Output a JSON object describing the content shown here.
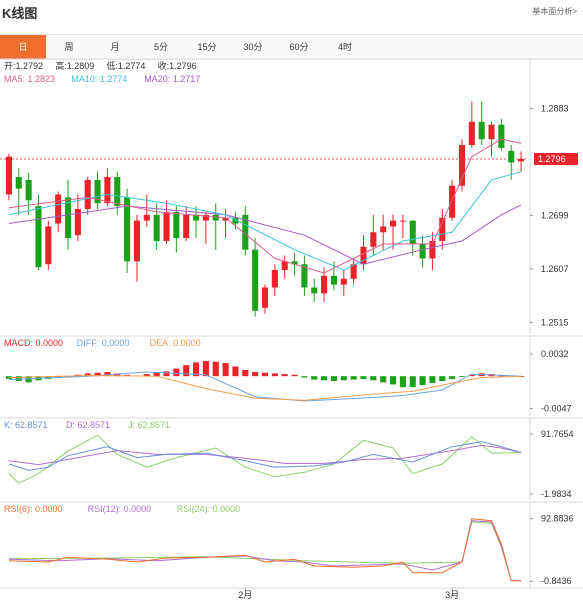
{
  "header": {
    "title": "K线图",
    "analysis_link": "基本面分析>"
  },
  "tabs": [
    {
      "label": "日",
      "active": true
    },
    {
      "label": "周"
    },
    {
      "label": "月"
    },
    {
      "label": "5分"
    },
    {
      "label": "15分"
    },
    {
      "label": "30分"
    },
    {
      "label": "60分"
    },
    {
      "label": "4时"
    }
  ],
  "colors": {
    "up": "#e8242a",
    "down": "#1aa31a",
    "ma5": "#e05e8c",
    "ma10": "#38c5da",
    "ma20": "#a05cc8",
    "accent": "#f06f30",
    "macd_diff": "#6fa3de",
    "macd_dea": "#f29d4b",
    "kdj_k": "#6f8fdd",
    "kdj_d": "#b06fd0",
    "kdj_j": "#8fcf6a",
    "rsi6": "#f06f30",
    "rsi12": "#b06fd0",
    "rsi24": "#8fcf6a"
  },
  "chart_data": {
    "type": "candlestick",
    "x_tick_labels": [
      {
        "label": "2月",
        "index": 24
      },
      {
        "label": "3月",
        "index": 45
      }
    ],
    "main": {
      "legend_ohlc": [
        {
          "key": "open",
          "label": "开:",
          "value": "1.2792"
        },
        {
          "key": "high",
          "label": "高:",
          "value": "1.2809"
        },
        {
          "key": "low",
          "label": "低:",
          "value": "1.2774"
        },
        {
          "key": "close",
          "label": "收:",
          "value": "1.2796"
        }
      ],
      "legend_ma": [
        {
          "key": "ma5",
          "label": "MA5: ",
          "value": "1.2823"
        },
        {
          "key": "ma10",
          "label": "MA10: ",
          "value": "1.2774"
        },
        {
          "key": "ma20",
          "label": "MA20: ",
          "value": "1.2717"
        }
      ],
      "y_ticks": [
        "1.2883",
        "1.2699",
        "1.2607",
        "1.2515"
      ],
      "y_min": 1.2495,
      "y_max": 1.2925,
      "last_price": "1.2796",
      "candles": [
        [
          1.2735,
          1.2805,
          1.2725,
          1.28
        ],
        [
          1.2765,
          1.278,
          1.27,
          1.2745
        ],
        [
          1.276,
          1.2772,
          1.27,
          1.2725
        ],
        [
          1.2715,
          1.2735,
          1.2605,
          1.261
        ],
        [
          1.2615,
          1.269,
          1.2605,
          1.268
        ],
        [
          1.2685,
          1.274,
          1.267,
          1.2735
        ],
        [
          1.273,
          1.276,
          1.264,
          1.266
        ],
        [
          1.2665,
          1.2735,
          1.2655,
          1.271
        ],
        [
          1.271,
          1.2765,
          1.27,
          1.276
        ],
        [
          1.276,
          1.2775,
          1.271,
          1.272
        ],
        [
          1.272,
          1.278,
          1.2715,
          1.2765
        ],
        [
          1.2765,
          1.2775,
          1.27,
          1.2715
        ],
        [
          1.273,
          1.2745,
          1.26,
          1.262
        ],
        [
          1.262,
          1.27,
          1.2585,
          1.269
        ],
        [
          1.269,
          1.2735,
          1.268,
          1.27
        ],
        [
          1.27,
          1.272,
          1.264,
          1.2655
        ],
        [
          1.2655,
          1.2725,
          1.265,
          1.2705
        ],
        [
          1.2705,
          1.2715,
          1.2635,
          1.266
        ],
        [
          1.266,
          1.2715,
          1.2655,
          1.27
        ],
        [
          1.27,
          1.2715,
          1.266,
          1.269
        ],
        [
          1.269,
          1.2705,
          1.265,
          1.27
        ],
        [
          1.27,
          1.272,
          1.264,
          1.269
        ],
        [
          1.269,
          1.271,
          1.266,
          1.2695
        ],
        [
          1.2695,
          1.2705,
          1.2675,
          1.2685
        ],
        [
          1.27,
          1.2715,
          1.263,
          1.264
        ],
        [
          1.264,
          1.266,
          1.2525,
          1.2535
        ],
        [
          1.254,
          1.258,
          1.253,
          1.2575
        ],
        [
          1.2575,
          1.2615,
          1.256,
          1.2605
        ],
        [
          1.2605,
          1.263,
          1.259,
          1.262
        ],
        [
          1.262,
          1.2635,
          1.2595,
          1.2615
        ],
        [
          1.2615,
          1.263,
          1.256,
          1.2575
        ],
        [
          1.2575,
          1.259,
          1.255,
          1.2565
        ],
        [
          1.2565,
          1.261,
          1.255,
          1.2595
        ],
        [
          1.2595,
          1.262,
          1.257,
          1.258
        ],
        [
          1.258,
          1.2605,
          1.256,
          1.259
        ],
        [
          1.259,
          1.2625,
          1.258,
          1.2615
        ],
        [
          1.2615,
          1.2665,
          1.2605,
          1.2645
        ],
        [
          1.2645,
          1.27,
          1.263,
          1.267
        ],
        [
          1.267,
          1.27,
          1.264,
          1.268
        ],
        [
          1.268,
          1.27,
          1.264,
          1.269
        ],
        [
          1.269,
          1.27,
          1.266,
          1.269
        ],
        [
          1.269,
          1.269,
          1.263,
          1.265
        ],
        [
          1.265,
          1.2665,
          1.261,
          1.2625
        ],
        [
          1.2625,
          1.267,
          1.2605,
          1.2655
        ],
        [
          1.2655,
          1.271,
          1.264,
          1.2695
        ],
        [
          1.2695,
          1.276,
          1.269,
          1.275
        ],
        [
          1.275,
          1.283,
          1.274,
          1.282
        ],
        [
          1.282,
          1.2895,
          1.2815,
          1.286
        ],
        [
          1.286,
          1.2895,
          1.282,
          1.283
        ],
        [
          1.283,
          1.286,
          1.28,
          1.2855
        ],
        [
          1.2855,
          1.2865,
          1.281,
          1.2815
        ],
        [
          1.281,
          1.282,
          1.276,
          1.279
        ],
        [
          1.2792,
          1.2809,
          1.2774,
          1.2796
        ]
      ],
      "ma5": [
        [
          0,
          1.2712
        ],
        [
          8,
          1.273
        ],
        [
          15,
          1.2705
        ],
        [
          22,
          1.2695
        ],
        [
          27,
          1.2625
        ],
        [
          32,
          1.26
        ],
        [
          38,
          1.265
        ],
        [
          43,
          1.265
        ],
        [
          47,
          1.28
        ],
        [
          50,
          1.283
        ],
        [
          52,
          1.2823
        ]
      ],
      "ma10": [
        [
          0,
          1.27
        ],
        [
          10,
          1.2735
        ],
        [
          16,
          1.272
        ],
        [
          22,
          1.27
        ],
        [
          29,
          1.264
        ],
        [
          34,
          1.2605
        ],
        [
          40,
          1.2655
        ],
        [
          45,
          1.267
        ],
        [
          49,
          1.276
        ],
        [
          52,
          1.2774
        ]
      ],
      "ma20": [
        [
          0,
          1.2685
        ],
        [
          12,
          1.2715
        ],
        [
          22,
          1.27
        ],
        [
          30,
          1.2665
        ],
        [
          36,
          1.2615
        ],
        [
          42,
          1.264
        ],
        [
          46,
          1.2655
        ],
        [
          50,
          1.27
        ],
        [
          52,
          1.2717
        ]
      ]
    },
    "macd": {
      "legend": [
        {
          "key": "macd",
          "label": "MACD: ",
          "value": "0.0000"
        },
        {
          "key": "diff",
          "label": "DIFF: ",
          "value": "0.0000"
        },
        {
          "key": "dea",
          "label": "DEA: ",
          "value": "0.0000"
        }
      ],
      "y_ticks": [
        "0.0032",
        "-0.0047"
      ],
      "y_min": -0.0052,
      "y_max": 0.0038,
      "histogram": [
        -0.0004,
        -0.0007,
        -0.0009,
        -0.0006,
        -0.0004,
        -0.0002,
        -0.0001,
        0.0002,
        0.0004,
        0.0005,
        0.0006,
        0.0004,
        0.0002,
        0.0001,
        0.0003,
        0.0005,
        0.0007,
        0.0011,
        0.0016,
        0.002,
        0.0022,
        0.0021,
        0.0019,
        0.0014,
        0.0009,
        0.0006,
        0.0005,
        0.0004,
        0.0003,
        0.0002,
        -0.0002,
        -0.0005,
        -0.0006,
        -0.0007,
        -0.0006,
        -0.0005,
        -0.0004,
        -0.0006,
        -0.0009,
        -0.0012,
        -0.0016,
        -0.0016,
        -0.0013,
        -0.001,
        -0.0007,
        -0.0004,
        -0.0001,
        0.0002,
        0.0004,
        0.0003,
        0.0001,
        0.0,
        0.0
      ],
      "diff": [
        [
          0,
          -0.0005
        ],
        [
          8,
          0.0
        ],
        [
          14,
          0.0006
        ],
        [
          20,
          0.0002
        ],
        [
          25,
          -0.003
        ],
        [
          30,
          -0.0036
        ],
        [
          37,
          -0.0031
        ],
        [
          40,
          -0.0028
        ],
        [
          44,
          -0.002
        ],
        [
          47,
          0.0003
        ],
        [
          52,
          0.0
        ]
      ],
      "dea": [
        [
          0,
          -0.0002
        ],
        [
          8,
          0.0001
        ],
        [
          15,
          0.0
        ],
        [
          20,
          -0.0018
        ],
        [
          25,
          -0.0032
        ],
        [
          30,
          -0.0035
        ],
        [
          37,
          -0.0026
        ],
        [
          41,
          -0.0022
        ],
        [
          45,
          -0.001
        ],
        [
          48,
          -0.0002
        ],
        [
          52,
          0.0
        ]
      ]
    },
    "kdj": {
      "legend": [
        {
          "key": "k",
          "label": "K: ",
          "value": "62.8571"
        },
        {
          "key": "d",
          "label": "D: ",
          "value": "62.8571"
        },
        {
          "key": "j",
          "label": "J: ",
          "value": "62.8571"
        }
      ],
      "y_ticks": [
        "91.7654",
        "-1.9834"
      ],
      "y_min": -5,
      "y_max": 95,
      "k": [
        [
          0,
          45
        ],
        [
          2,
          35
        ],
        [
          4,
          40
        ],
        [
          6,
          58
        ],
        [
          10,
          72
        ],
        [
          13,
          55
        ],
        [
          16,
          60
        ],
        [
          20,
          62
        ],
        [
          24,
          50
        ],
        [
          27,
          40
        ],
        [
          31,
          42
        ],
        [
          34,
          48
        ],
        [
          37,
          60
        ],
        [
          41,
          48
        ],
        [
          45,
          72
        ],
        [
          48,
          80
        ],
        [
          50,
          72
        ],
        [
          52,
          62.86
        ]
      ],
      "d": [
        [
          0,
          50
        ],
        [
          3,
          44
        ],
        [
          7,
          55
        ],
        [
          11,
          66
        ],
        [
          15,
          60
        ],
        [
          20,
          60
        ],
        [
          24,
          54
        ],
        [
          28,
          46
        ],
        [
          32,
          46
        ],
        [
          36,
          52
        ],
        [
          40,
          54
        ],
        [
          45,
          66
        ],
        [
          48,
          74
        ],
        [
          50,
          70
        ],
        [
          52,
          62.86
        ]
      ],
      "j": [
        [
          0,
          30
        ],
        [
          1,
          15
        ],
        [
          3,
          30
        ],
        [
          6,
          65
        ],
        [
          9,
          90
        ],
        [
          11,
          60
        ],
        [
          14,
          40
        ],
        [
          17,
          55
        ],
        [
          21,
          70
        ],
        [
          24,
          40
        ],
        [
          27,
          25
        ],
        [
          30,
          32
        ],
        [
          33,
          45
        ],
        [
          36,
          82
        ],
        [
          39,
          70
        ],
        [
          41,
          30
        ],
        [
          44,
          45
        ],
        [
          47,
          88
        ],
        [
          49,
          62
        ],
        [
          52,
          62.86
        ]
      ]
    },
    "rsi": {
      "legend": [
        {
          "key": "rsi6",
          "label": "RSI(6): ",
          "value": "0.0000"
        },
        {
          "key": "rsi12",
          "label": "RSI(12): ",
          "value": "0.0000"
        },
        {
          "key": "rsi24",
          "label": "RSI(24): ",
          "value": "0.0000"
        }
      ],
      "y_ticks": [
        "92.8836",
        "-0.8436"
      ],
      "y_min": -5,
      "y_max": 97,
      "rsi6": [
        [
          0,
          30
        ],
        [
          4,
          28
        ],
        [
          6,
          35
        ],
        [
          10,
          32
        ],
        [
          13,
          28
        ],
        [
          16,
          34
        ],
        [
          20,
          35
        ],
        [
          24,
          38
        ],
        [
          26,
          28
        ],
        [
          29,
          32
        ],
        [
          31,
          22
        ],
        [
          35,
          20
        ],
        [
          38,
          22
        ],
        [
          40,
          28
        ],
        [
          41,
          12
        ],
        [
          44,
          12
        ],
        [
          46,
          28
        ],
        [
          47,
          93
        ],
        [
          49,
          90
        ],
        [
          50,
          55
        ],
        [
          51,
          0
        ],
        [
          52,
          0
        ]
      ],
      "rsi12": [
        [
          0,
          32
        ],
        [
          5,
          30
        ],
        [
          10,
          33
        ],
        [
          15,
          30
        ],
        [
          20,
          35
        ],
        [
          24,
          37
        ],
        [
          27,
          30
        ],
        [
          30,
          28
        ],
        [
          33,
          22
        ],
        [
          37,
          24
        ],
        [
          40,
          25
        ],
        [
          43,
          16
        ],
        [
          46,
          28
        ],
        [
          47,
          90
        ],
        [
          49,
          88
        ],
        [
          50,
          52
        ],
        [
          51,
          0
        ],
        [
          52,
          0
        ]
      ],
      "rsi24": [
        [
          0,
          33
        ],
        [
          10,
          34
        ],
        [
          20,
          36
        ],
        [
          30,
          30
        ],
        [
          40,
          26
        ],
        [
          46,
          28
        ],
        [
          47,
          88
        ],
        [
          49,
          86
        ],
        [
          50,
          50
        ],
        [
          51,
          0
        ],
        [
          52,
          0
        ]
      ]
    }
  }
}
